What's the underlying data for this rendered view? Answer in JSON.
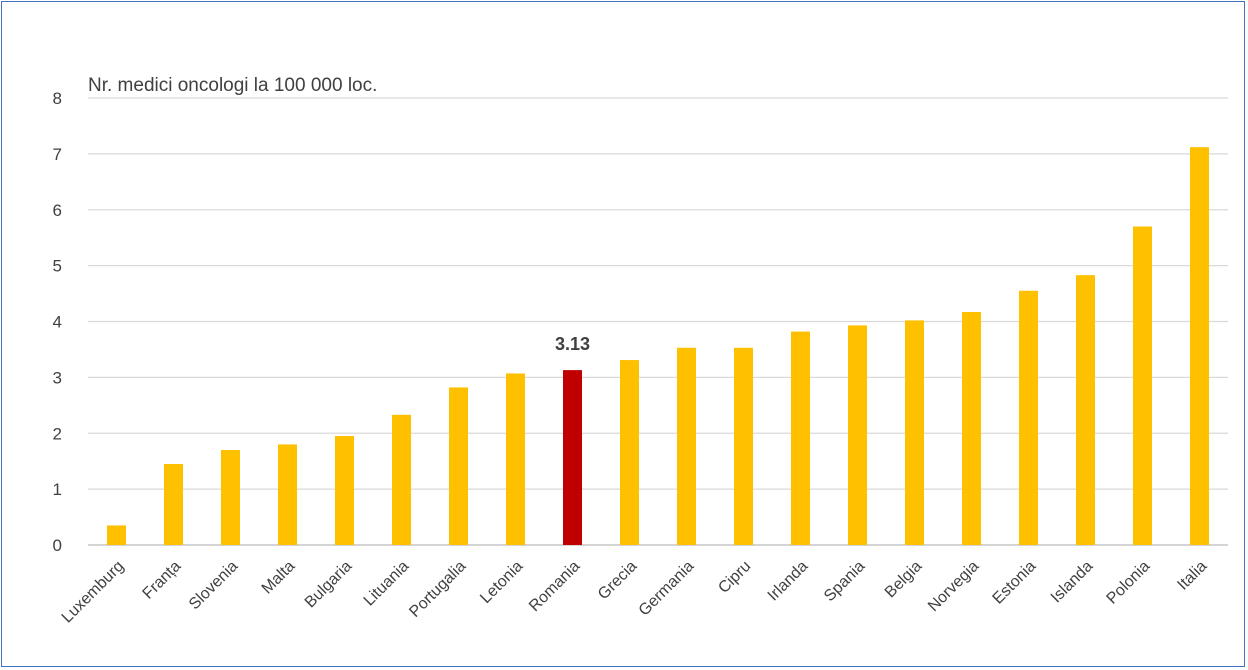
{
  "chart_data": {
    "type": "bar",
    "ylabel": "Nr. medici oncologi la 100 000 loc.",
    "ylim": [
      0,
      8
    ],
    "yticks": [
      0,
      1,
      2,
      3,
      4,
      5,
      6,
      7,
      8
    ],
    "grid": true,
    "categories": [
      "Luxemburg",
      "Franța",
      "Slovenia",
      "Malta",
      "Bulgaria",
      "Lituania",
      "Portugalia",
      "Letonia",
      "Romania",
      "Grecia",
      "Germania",
      "Cipru",
      "Irlanda",
      "Spania",
      "Belgia",
      "Norvegia",
      "Estonia",
      "Islanda",
      "Polonia",
      "Italia"
    ],
    "values": [
      0.35,
      1.45,
      1.7,
      1.8,
      1.95,
      2.33,
      2.82,
      3.07,
      3.13,
      3.31,
      3.53,
      3.53,
      3.82,
      3.93,
      4.02,
      4.17,
      4.55,
      4.83,
      5.7,
      7.12
    ],
    "highlight_category": "Romania",
    "data_label": {
      "category": "Romania",
      "text": "3.13"
    },
    "colors": {
      "bar": "#ffc000",
      "highlight": "#c00000",
      "grid": "#d9d9d9",
      "frame": "#4472c4"
    }
  }
}
